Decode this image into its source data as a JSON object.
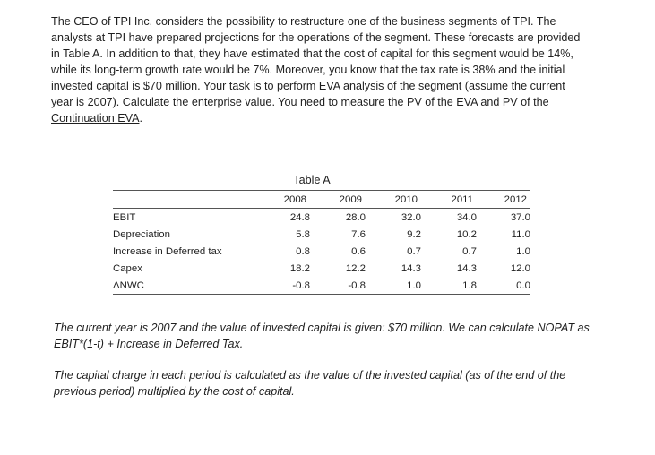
{
  "problem": {
    "p1": "The CEO of TPI Inc. considers the possibility to restructure one of the business segments of TPI. The analysts at TPI have prepared projections for the operations of the segment. These forecasts are provided in Table A. In addition to that, they have estimated that the cost of capital for this segment would be 14%, while its long-term growth rate would be 7%. Moreover, you know that the tax rate is 38% and the initial invested capital is $70 million. Your task is to perform EVA analysis of the segment (assume the current year is 2007). Calculate ",
    "link1": "the enterprise value",
    "p2": ". You need to measure ",
    "link2": "the PV of the EVA and PV of the Continuation EVA",
    "p3": "."
  },
  "table": {
    "title": "Table A",
    "years": [
      "2008",
      "2009",
      "2010",
      "2011",
      "2012"
    ],
    "rows": [
      {
        "label": "EBIT",
        "values": [
          "24.8",
          "28.0",
          "32.0",
          "34.0",
          "37.0"
        ]
      },
      {
        "label": "Depreciation",
        "values": [
          "5.8",
          "7.6",
          "9.2",
          "10.2",
          "11.0"
        ]
      },
      {
        "label": "Increase in Deferred tax",
        "values": [
          "0.8",
          "0.6",
          "0.7",
          "0.7",
          "1.0"
        ]
      },
      {
        "label": "Capex",
        "values": [
          "18.2",
          "12.2",
          "14.3",
          "14.3",
          "12.0"
        ]
      },
      {
        "label": "ΔNWC",
        "values": [
          "-0.8",
          "-0.8",
          "1.0",
          "1.8",
          "0.0"
        ]
      }
    ]
  },
  "notes": {
    "note1": "The current year is 2007 and the value of invested capital is given: $70 million. We can calculate NOPAT as EBIT*(1-t) + Increase in Deferred Tax.",
    "note2": "The capital charge in each period is calculated as the value of the invested capital (as of the end of the previous period) multiplied by the cost of capital."
  }
}
